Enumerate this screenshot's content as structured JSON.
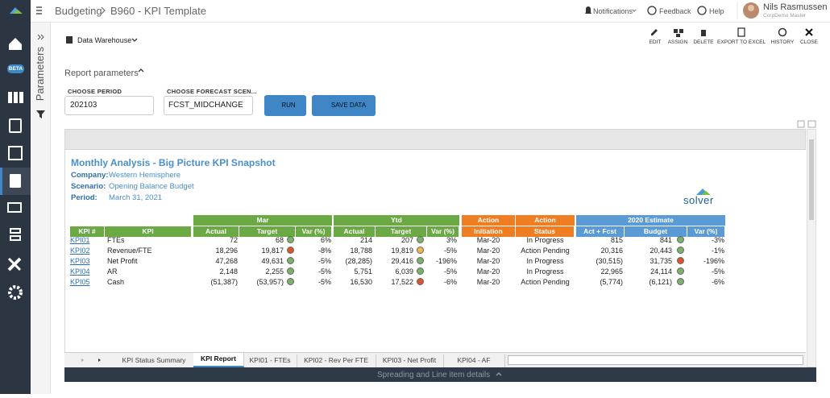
{
  "sidebar": {
    "beta": "BETA"
  },
  "header": {
    "crumbs": [
      "Budgeting",
      "B960 - KPI Template"
    ],
    "notifications": "Notifications",
    "feedback": "Feedback",
    "help": "Help",
    "user_name": "Nils Rasmussen",
    "user_company": "CorpDemo Master"
  },
  "panel": {
    "title": "Parameters"
  },
  "toolbar": {
    "source": "Data Warehouse",
    "actions": [
      "EDIT",
      "ASSIGN",
      "DELETE",
      "EXPORT TO EXCEL",
      "HISTORY",
      "CLOSE"
    ]
  },
  "params": {
    "title": "Report parameters",
    "period_label": "CHOOSE PERIOD",
    "period_value": "202103",
    "forecast_label": "CHOOSE FORECAST SCEN...",
    "forecast_value": "FCST_MIDCHANGE",
    "run": "RUN",
    "save": "SAVE DATA"
  },
  "report": {
    "title": "Monthly Analysis - Big Picture KPI Snapshot",
    "info": [
      {
        "label": "Company:",
        "value": "Western Hemisphere"
      },
      {
        "label": "Scenario:",
        "value": "Opening Balance Budget"
      },
      {
        "label": "Period:",
        "value": "March 31, 2021"
      }
    ],
    "logo": "solver",
    "groups": [
      {
        "label": "Mar",
        "color": "#6aa944"
      },
      {
        "label": "Ytd",
        "color": "#6aa944"
      },
      {
        "label": "Action",
        "color": "#ef7d22"
      },
      {
        "label": "Action",
        "color": "#ef7d22"
      },
      {
        "label": "2020 Estimate",
        "color": "#5b9bd5"
      }
    ],
    "columns": [
      "KPI #",
      "KPI",
      "Actual",
      "Target",
      "Var (%)",
      "Actual",
      "Target",
      "Var (%)",
      "Initiation",
      "Status",
      "Act + Fcst",
      "Budget",
      "Var (%)"
    ],
    "rows": [
      {
        "cells": [
          "KPI01",
          "FTEs",
          "72",
          "68",
          "6%",
          "214",
          "207",
          "3%",
          "Mar-20",
          "In Progress",
          "815",
          "841",
          "-3%"
        ],
        "dots": [
          "#7bb26a",
          "#7bb26a",
          "#7bb26a"
        ]
      },
      {
        "cells": [
          "KPI02",
          "Revenue/FTE",
          "18,296",
          "19,817",
          "-8%",
          "18,788",
          "19,819",
          "-5%",
          "Mar-20",
          "Action Pending",
          "20,316",
          "20,443",
          "-1%"
        ],
        "dots": [
          "#d9552d",
          "#f0b45a",
          "#7bb26a"
        ]
      },
      {
        "cells": [
          "KPI03",
          "Net Profit",
          "47,268",
          "49,631",
          "-5%",
          "(28,285)",
          "29,416",
          "-196%",
          "Mar-20",
          "In Progress",
          "(30,515)",
          "31,735",
          "-196%"
        ],
        "dots": [
          "#7bb26a",
          "#7bb26a",
          "#d9552d"
        ]
      },
      {
        "cells": [
          "KPI04",
          "AR",
          "2,148",
          "2,255",
          "-5%",
          "5,751",
          "6,039",
          "-5%",
          "Mar-20",
          "In Progress",
          "22,965",
          "24,114",
          "-5%"
        ],
        "dots": [
          "#7bb26a",
          "#7bb26a",
          "#7bb26a"
        ]
      },
      {
        "cells": [
          "KPI05",
          "Cash",
          "(51,387)",
          "(53,957)",
          "-5%",
          "16,530",
          "17,522",
          "-6%",
          "Mar-20",
          "Action Pending",
          "(5,774)",
          "(6,121)",
          "-6%"
        ],
        "dots": [
          "#7bb26a",
          "#d9552d",
          "#7bb26a"
        ]
      }
    ]
  },
  "tabs": {
    "items": [
      "KPI Status Summary",
      "KPI Report",
      "KPI01 - FTEs",
      "KPI02 - Rev Per FTE",
      "KPI03 - Net Profit",
      "KPI04 - AF"
    ],
    "active": 1
  },
  "footer": {
    "label": "Spreading and Line item details"
  }
}
